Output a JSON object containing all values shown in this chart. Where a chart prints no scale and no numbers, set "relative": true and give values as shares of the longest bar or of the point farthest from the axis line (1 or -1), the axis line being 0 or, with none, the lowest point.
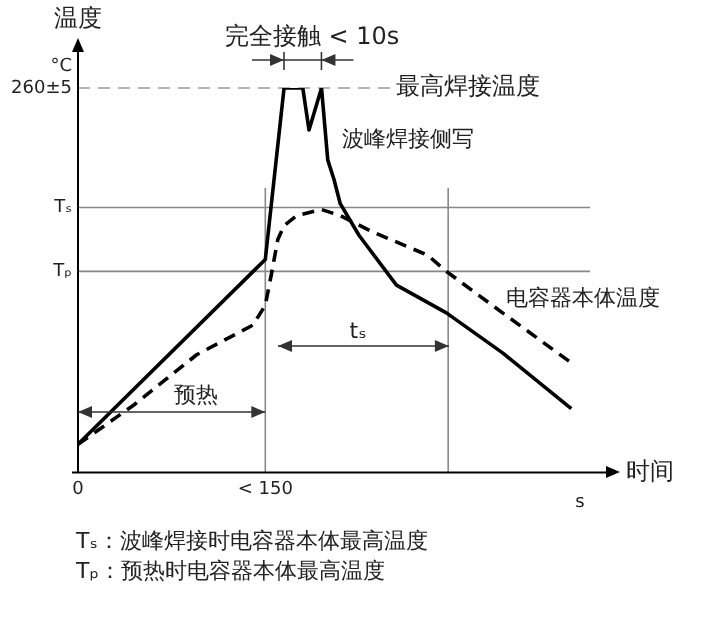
{
  "chart_data": {
    "type": "line",
    "relative": true,
    "xlabel": "时间",
    "ylabel": "温度",
    "categories": [
      "0",
      null,
      null,
      null,
      null,
      null,
      null,
      null,
      null,
      null,
      null,
      null,
      null,
      null,
      null,
      null,
      null,
      null,
      null,
      null,
      null,
      null,
      null,
      null,
      null,
      null,
      null,
      null,
      null,
      null,
      "< 150",
      null,
      null,
      null,
      null,
      null,
      null,
      null,
      null,
      null,
      null,
      null,
      null,
      null,
      null,
      null,
      null,
      null,
      null,
      null,
      null,
      null,
      null,
      null,
      null,
      null,
      null,
      null,
      null,
      null,
      null,
      null,
      null,
      null,
      null,
      null,
      null,
      null,
      null,
      null,
      null,
      null,
      null,
      null,
      null,
      null,
      null,
      null,
      null,
      null,
      null,
      null,
      null
    ],
    "marker": "none",
    "grid": "x",
    "legend": false,
    "series": [
      {
        "name": "波峰焊接侧写",
        "color": "#000000",
        "line_style": "solid",
        "values": [
          0.073,
          null,
          null,
          null,
          null,
          null,
          null,
          null,
          null,
          null,
          null,
          null,
          null,
          null,
          null,
          null,
          null,
          null,
          null,
          null,
          null,
          null,
          null,
          null,
          null,
          null,
          null,
          null,
          null,
          null,
          0.554,
          null,
          null,
          1,
          null,
          null,
          1,
          0.891,
          null,
          1,
          0.813,
          0.762,
          0.699,
          null,
          null,
          0.617,
          null,
          null,
          null,
          null,
          null,
          0.487,
          null,
          null,
          null,
          null,
          null,
          null,
          null,
          0.415,
          null,
          null,
          null,
          null,
          null,
          null,
          null,
          null,
          0.311,
          null,
          null,
          null,
          null,
          null,
          null,
          null,
          null,
          null,
          null,
          0.166,
          null,
          null,
          null
        ]
      },
      {
        "name": "电容器本体温度",
        "color": "#000000",
        "line_style": "dashed",
        "values": [
          0.073,
          null,
          null,
          null,
          null,
          null,
          null,
          null,
          null,
          0.176,
          null,
          null,
          null,
          null,
          null,
          null,
          null,
          null,
          null,
          0.306,
          null,
          null,
          null,
          null,
          null,
          null,
          null,
          null,
          0.383,
          null,
          0.435,
          0.518,
          0.606,
          0.642,
          null,
          0.668,
          null,
          null,
          null,
          0.684,
          null,
          null,
          0.668,
          null,
          null,
          null,
          null,
          0.627,
          null,
          null,
          null,
          null,
          null,
          null,
          null,
          null,
          0.565,
          null,
          null,
          0.523,
          null,
          null,
          null,
          null,
          null,
          null,
          null,
          null,
          0.415,
          null,
          null,
          null,
          null,
          null,
          null,
          null,
          null,
          null,
          null,
          0.285,
          null,
          null,
          null
        ]
      }
    ],
    "ref_lines": [
      {
        "axis": "y",
        "value": 1,
        "color": "#999999",
        "line_style": "dashed"
      },
      {
        "axis": "y",
        "value": 0.689,
        "label": "Tₛ",
        "color": "#888888",
        "line_style": "solid"
      },
      {
        "axis": "y",
        "value": 0.523,
        "label": "Tₚ",
        "color": "#888888",
        "line_style": "solid"
      }
    ],
    "annotations": [
      "°C",
      "260±5",
      "最高焊接温度",
      "完全接触 < 10s",
      "预热",
      "tₛ",
      "s",
      "Tₛ：波峰焊接时电容器本体最高温度",
      "Tₚ：预热时电容器本体最高温度"
    ]
  }
}
